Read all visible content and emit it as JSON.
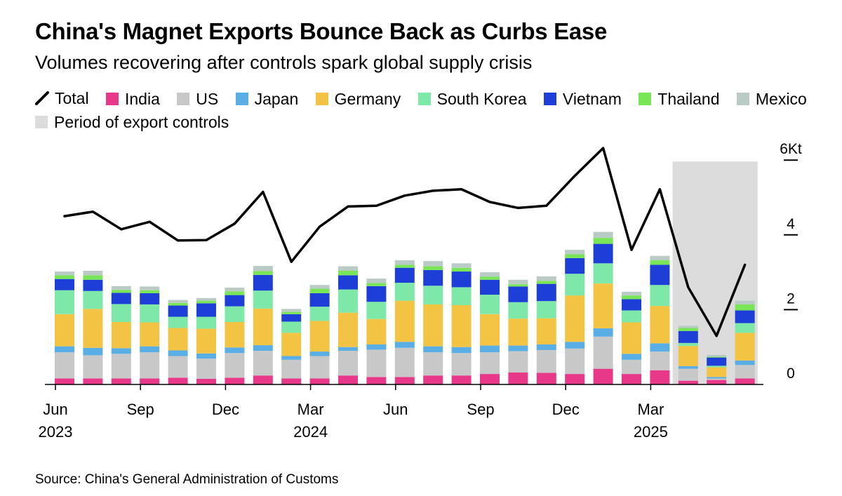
{
  "chart_data": {
    "type": "bar",
    "stacked": true,
    "title": "China's Magnet Exports Bounce Back as Curbs Ease",
    "subtitle": "Volumes recovering after controls spark global supply crisis",
    "source": "Source: China's General Administration of Customs",
    "unit": "Kt",
    "ylim": [
      0,
      6
    ],
    "y_ticks": [
      {
        "value": 6,
        "label": "6Kt"
      },
      {
        "value": 4,
        "label": "4"
      },
      {
        "value": 2,
        "label": "2"
      },
      {
        "value": 0,
        "label": "0"
      }
    ],
    "categories": [
      "Jun 2023",
      "Jul 2023",
      "Aug 2023",
      "Sep 2023",
      "Oct 2023",
      "Nov 2023",
      "Dec 2023",
      "Jan 2024",
      "Feb 2024",
      "Mar 2024",
      "Apr 2024",
      "May 2024",
      "Jun 2024",
      "Jul 2024",
      "Aug 2024",
      "Sep 2024",
      "Oct 2024",
      "Nov 2024",
      "Dec 2024",
      "Jan 2025",
      "Feb 2025",
      "Mar 2025",
      "Apr 2025",
      "May 2025",
      "Jun 2025"
    ],
    "x_tick_labels": [
      {
        "index": 0,
        "label": "Jun",
        "year": "2023"
      },
      {
        "index": 3,
        "label": "Sep",
        "year": ""
      },
      {
        "index": 6,
        "label": "Dec",
        "year": ""
      },
      {
        "index": 9,
        "label": "Mar",
        "year": "2024"
      },
      {
        "index": 12,
        "label": "Jun",
        "year": ""
      },
      {
        "index": 15,
        "label": "Sep",
        "year": ""
      },
      {
        "index": 18,
        "label": "Dec",
        "year": ""
      },
      {
        "index": 21,
        "label": "Mar",
        "year": "2025"
      }
    ],
    "series": [
      {
        "name": "India",
        "color": "#e8388a",
        "values": [
          0.16,
          0.16,
          0.16,
          0.16,
          0.18,
          0.15,
          0.18,
          0.24,
          0.16,
          0.16,
          0.24,
          0.2,
          0.2,
          0.24,
          0.24,
          0.28,
          0.32,
          0.31,
          0.28,
          0.42,
          0.28,
          0.38,
          0.1,
          0.12,
          0.16
        ]
      },
      {
        "name": "US",
        "color": "#c8c8c8",
        "values": [
          0.7,
          0.62,
          0.66,
          0.7,
          0.58,
          0.54,
          0.66,
          0.66,
          0.5,
          0.6,
          0.66,
          0.73,
          0.78,
          0.62,
          0.6,
          0.58,
          0.57,
          0.61,
          0.68,
          0.86,
          0.38,
          0.5,
          0.32,
          0.04,
          0.36
        ]
      },
      {
        "name": "Japan",
        "color": "#5aaee6",
        "values": [
          0.16,
          0.2,
          0.15,
          0.16,
          0.15,
          0.14,
          0.15,
          0.15,
          0.1,
          0.12,
          0.1,
          0.14,
          0.16,
          0.16,
          0.16,
          0.18,
          0.15,
          0.15,
          0.18,
          0.22,
          0.16,
          0.22,
          0.07,
          0.04,
          0.12
        ]
      },
      {
        "name": "Germany",
        "color": "#f3c343",
        "values": [
          0.86,
          1.04,
          0.7,
          0.64,
          0.6,
          0.66,
          0.68,
          0.98,
          0.62,
          0.82,
          0.92,
          0.68,
          1.1,
          1.12,
          1.12,
          0.84,
          0.72,
          0.7,
          1.24,
          1.2,
          0.84,
          1.0,
          0.54,
          0.26,
          0.74
        ]
      },
      {
        "name": "South Korea",
        "color": "#7ee8a8",
        "values": [
          0.64,
          0.48,
          0.48,
          0.48,
          0.3,
          0.32,
          0.42,
          0.48,
          0.3,
          0.38,
          0.62,
          0.46,
          0.48,
          0.5,
          0.48,
          0.52,
          0.44,
          0.46,
          0.58,
          0.54,
          0.32,
          0.56,
          0.08,
          0.04,
          0.26
        ]
      },
      {
        "name": "Vietnam",
        "color": "#1d3fd8",
        "values": [
          0.3,
          0.3,
          0.3,
          0.3,
          0.3,
          0.36,
          0.3,
          0.42,
          0.2,
          0.36,
          0.38,
          0.42,
          0.4,
          0.42,
          0.42,
          0.4,
          0.42,
          0.46,
          0.42,
          0.52,
          0.3,
          0.54,
          0.32,
          0.22,
          0.34
        ]
      },
      {
        "name": "Thailand",
        "color": "#78e656",
        "values": [
          0.1,
          0.12,
          0.08,
          0.08,
          0.07,
          0.07,
          0.1,
          0.1,
          0.06,
          0.12,
          0.12,
          0.08,
          0.08,
          0.1,
          0.1,
          0.08,
          0.06,
          0.08,
          0.1,
          0.16,
          0.1,
          0.12,
          0.08,
          0.02,
          0.16
        ]
      },
      {
        "name": "Mexico",
        "color": "#b9cbc4",
        "values": [
          0.1,
          0.12,
          0.1,
          0.1,
          0.08,
          0.07,
          0.1,
          0.14,
          0.08,
          0.1,
          0.12,
          0.12,
          0.12,
          0.14,
          0.12,
          0.12,
          0.12,
          0.12,
          0.12,
          0.16,
          0.1,
          0.12,
          0.06,
          0.05,
          0.1
        ]
      }
    ],
    "total": {
      "name": "Total",
      "color": "#000000",
      "values": [
        4.5,
        4.62,
        4.15,
        4.35,
        3.85,
        3.86,
        4.3,
        5.15,
        3.28,
        4.22,
        4.76,
        4.78,
        5.05,
        5.18,
        5.22,
        4.88,
        4.72,
        4.78,
        5.58,
        6.32,
        3.6,
        5.22,
        2.6,
        1.3,
        3.2
      ]
    },
    "shaded_period": {
      "label": "Period of export controls",
      "color": "#dcdcdc",
      "start_index": 22,
      "end_index": 24
    },
    "legend_placement": "top"
  }
}
